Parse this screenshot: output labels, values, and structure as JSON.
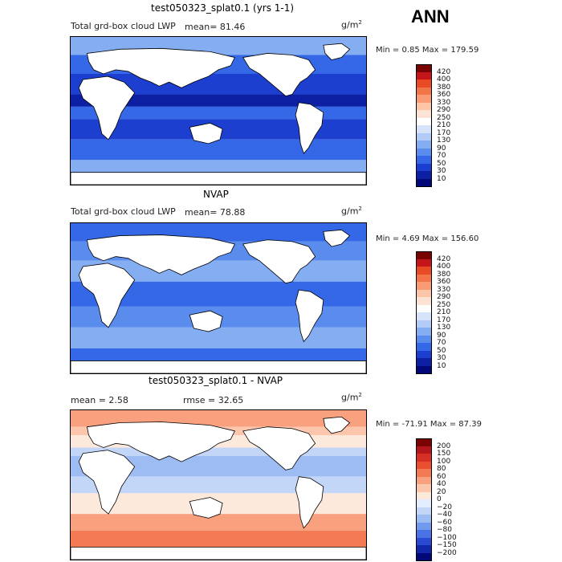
{
  "season": "ANN",
  "panels": [
    {
      "title": "test050323_splat0.1 (yrs 1-1)",
      "left_text": "Total grd-box cloud LWP",
      "stat_text": "mean=  81.46",
      "units": "g/m",
      "units_exp": "2",
      "minmax": "Min =    0.85 Max = 179.59",
      "palette": "blues",
      "colorbar_labels": [
        "420",
        "400",
        "380",
        "360",
        "330",
        "290",
        "250",
        "210",
        "170",
        "130",
        "90",
        "70",
        "50",
        "30",
        "10"
      ],
      "colors": [
        "#7a0403",
        "#c4151b",
        "#e84a24",
        "#f4744a",
        "#f99c74",
        "#fcc5a8",
        "#fde3d3",
        "#ffffff",
        "#d6e4fb",
        "#b2cbf6",
        "#85aef2",
        "#5a8cee",
        "#3568e6",
        "#1d3fd0",
        "#0d1fa3",
        "#02087a"
      ]
    },
    {
      "title": "NVAP",
      "left_text": "Total grd-box cloud LWP",
      "stat_text": "mean=  78.88",
      "units": "g/m",
      "units_exp": "2",
      "minmax": "Min =    4.69 Max = 156.60",
      "palette": "blues",
      "colorbar_labels": [
        "420",
        "400",
        "380",
        "360",
        "330",
        "290",
        "250",
        "210",
        "170",
        "130",
        "90",
        "70",
        "50",
        "30",
        "10"
      ],
      "colors": [
        "#7a0403",
        "#c4151b",
        "#e84a24",
        "#f4744a",
        "#f99c74",
        "#fcc5a8",
        "#fde3d3",
        "#ffffff",
        "#d6e4fb",
        "#b2cbf6",
        "#85aef2",
        "#5a8cee",
        "#3568e6",
        "#1d3fd0",
        "#0d1fa3",
        "#02087a"
      ]
    },
    {
      "title": "test050323_splat0.1 - NVAP",
      "left_text": "mean =    2.58",
      "stat_text": "rmse =   32.65",
      "units": "g/m",
      "units_exp": "2",
      "minmax": "Min = -71.91 Max =   87.39",
      "palette": "diverging",
      "colorbar_labels": [
        "200",
        "150",
        "100",
        "80",
        "60",
        "40",
        "20",
        "0",
        "−20",
        "−40",
        "−60",
        "−80",
        "−100",
        "−150",
        "−200"
      ],
      "colors": [
        "#7a0403",
        "#b4161b",
        "#d62f25",
        "#e9502f",
        "#f47a55",
        "#f9a07e",
        "#fcc6ac",
        "#fde8dc",
        "#e3ecfc",
        "#c3d6f8",
        "#9dbcf3",
        "#7399ee",
        "#4a73e6",
        "#2a49d4",
        "#1328a9",
        "#04097a"
      ]
    }
  ]
}
